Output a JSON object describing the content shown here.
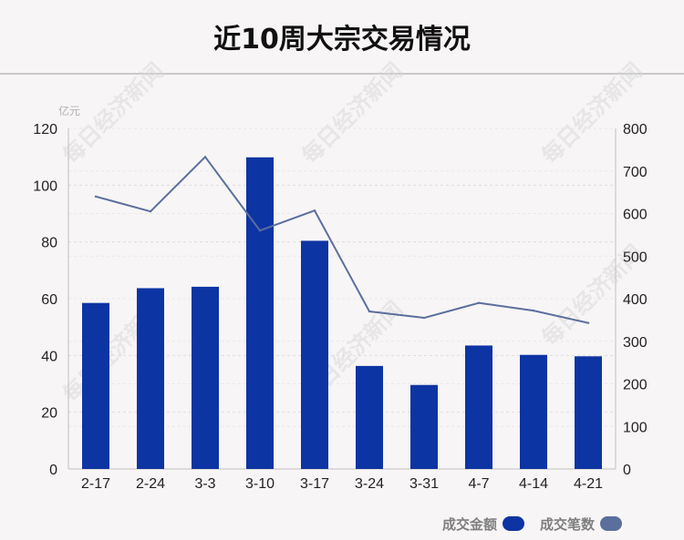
{
  "page": {
    "title": "近10周大宗交易情况"
  },
  "chart_data": {
    "type": "bar",
    "title": "近10周大宗交易情况",
    "unit_left": "亿元",
    "categories": [
      "2-17",
      "2-24",
      "3-3",
      "3-10",
      "3-17",
      "3-24",
      "3-31",
      "4-7",
      "4-14",
      "4-21"
    ],
    "series": [
      {
        "name": "成交金额",
        "type": "bar",
        "axis": "left",
        "color": "#0d34a3",
        "values": [
          58.5,
          63.7,
          64.2,
          109.8,
          80.4,
          36.3,
          29.6,
          43.5,
          40.2,
          39.7
        ]
      },
      {
        "name": "成交笔数",
        "type": "line",
        "axis": "right",
        "color": "#5b6f9c",
        "values": [
          640,
          605,
          733,
          560,
          607,
          370,
          355,
          390,
          372,
          343
        ]
      }
    ],
    "y_left": {
      "min": 0,
      "max": 120,
      "ticks": [
        0,
        20,
        40,
        60,
        80,
        100,
        120
      ]
    },
    "y_right": {
      "min": 0,
      "max": 800,
      "ticks": [
        0,
        100,
        200,
        300,
        400,
        500,
        600,
        700,
        800
      ]
    },
    "grid": true,
    "legend_position": "bottom-right",
    "watermark": "每日经济新闻"
  }
}
